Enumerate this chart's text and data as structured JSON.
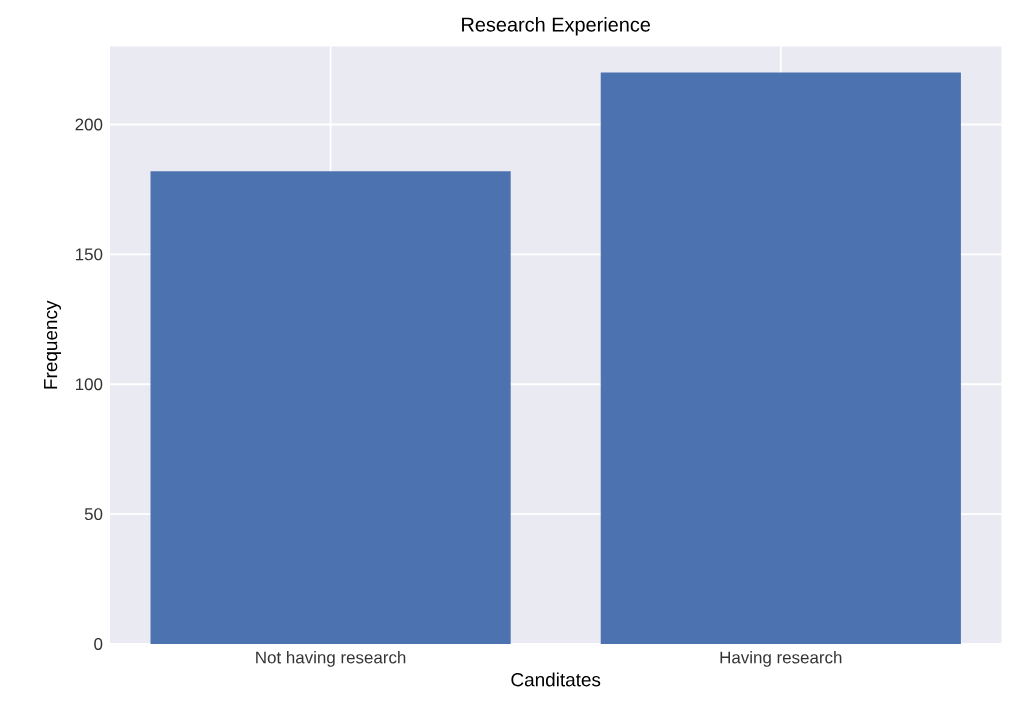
{
  "chart_data": {
    "type": "bar",
    "title": "Research Experience",
    "xlabel": "Canditates",
    "ylabel": "Frequency",
    "categories": [
      "Not having research",
      "Having research"
    ],
    "values": [
      182,
      220
    ],
    "color": "#4c72b0",
    "ylim": [
      0,
      230
    ],
    "yticks": [
      0,
      50,
      100,
      150,
      200
    ],
    "grid": true
  }
}
